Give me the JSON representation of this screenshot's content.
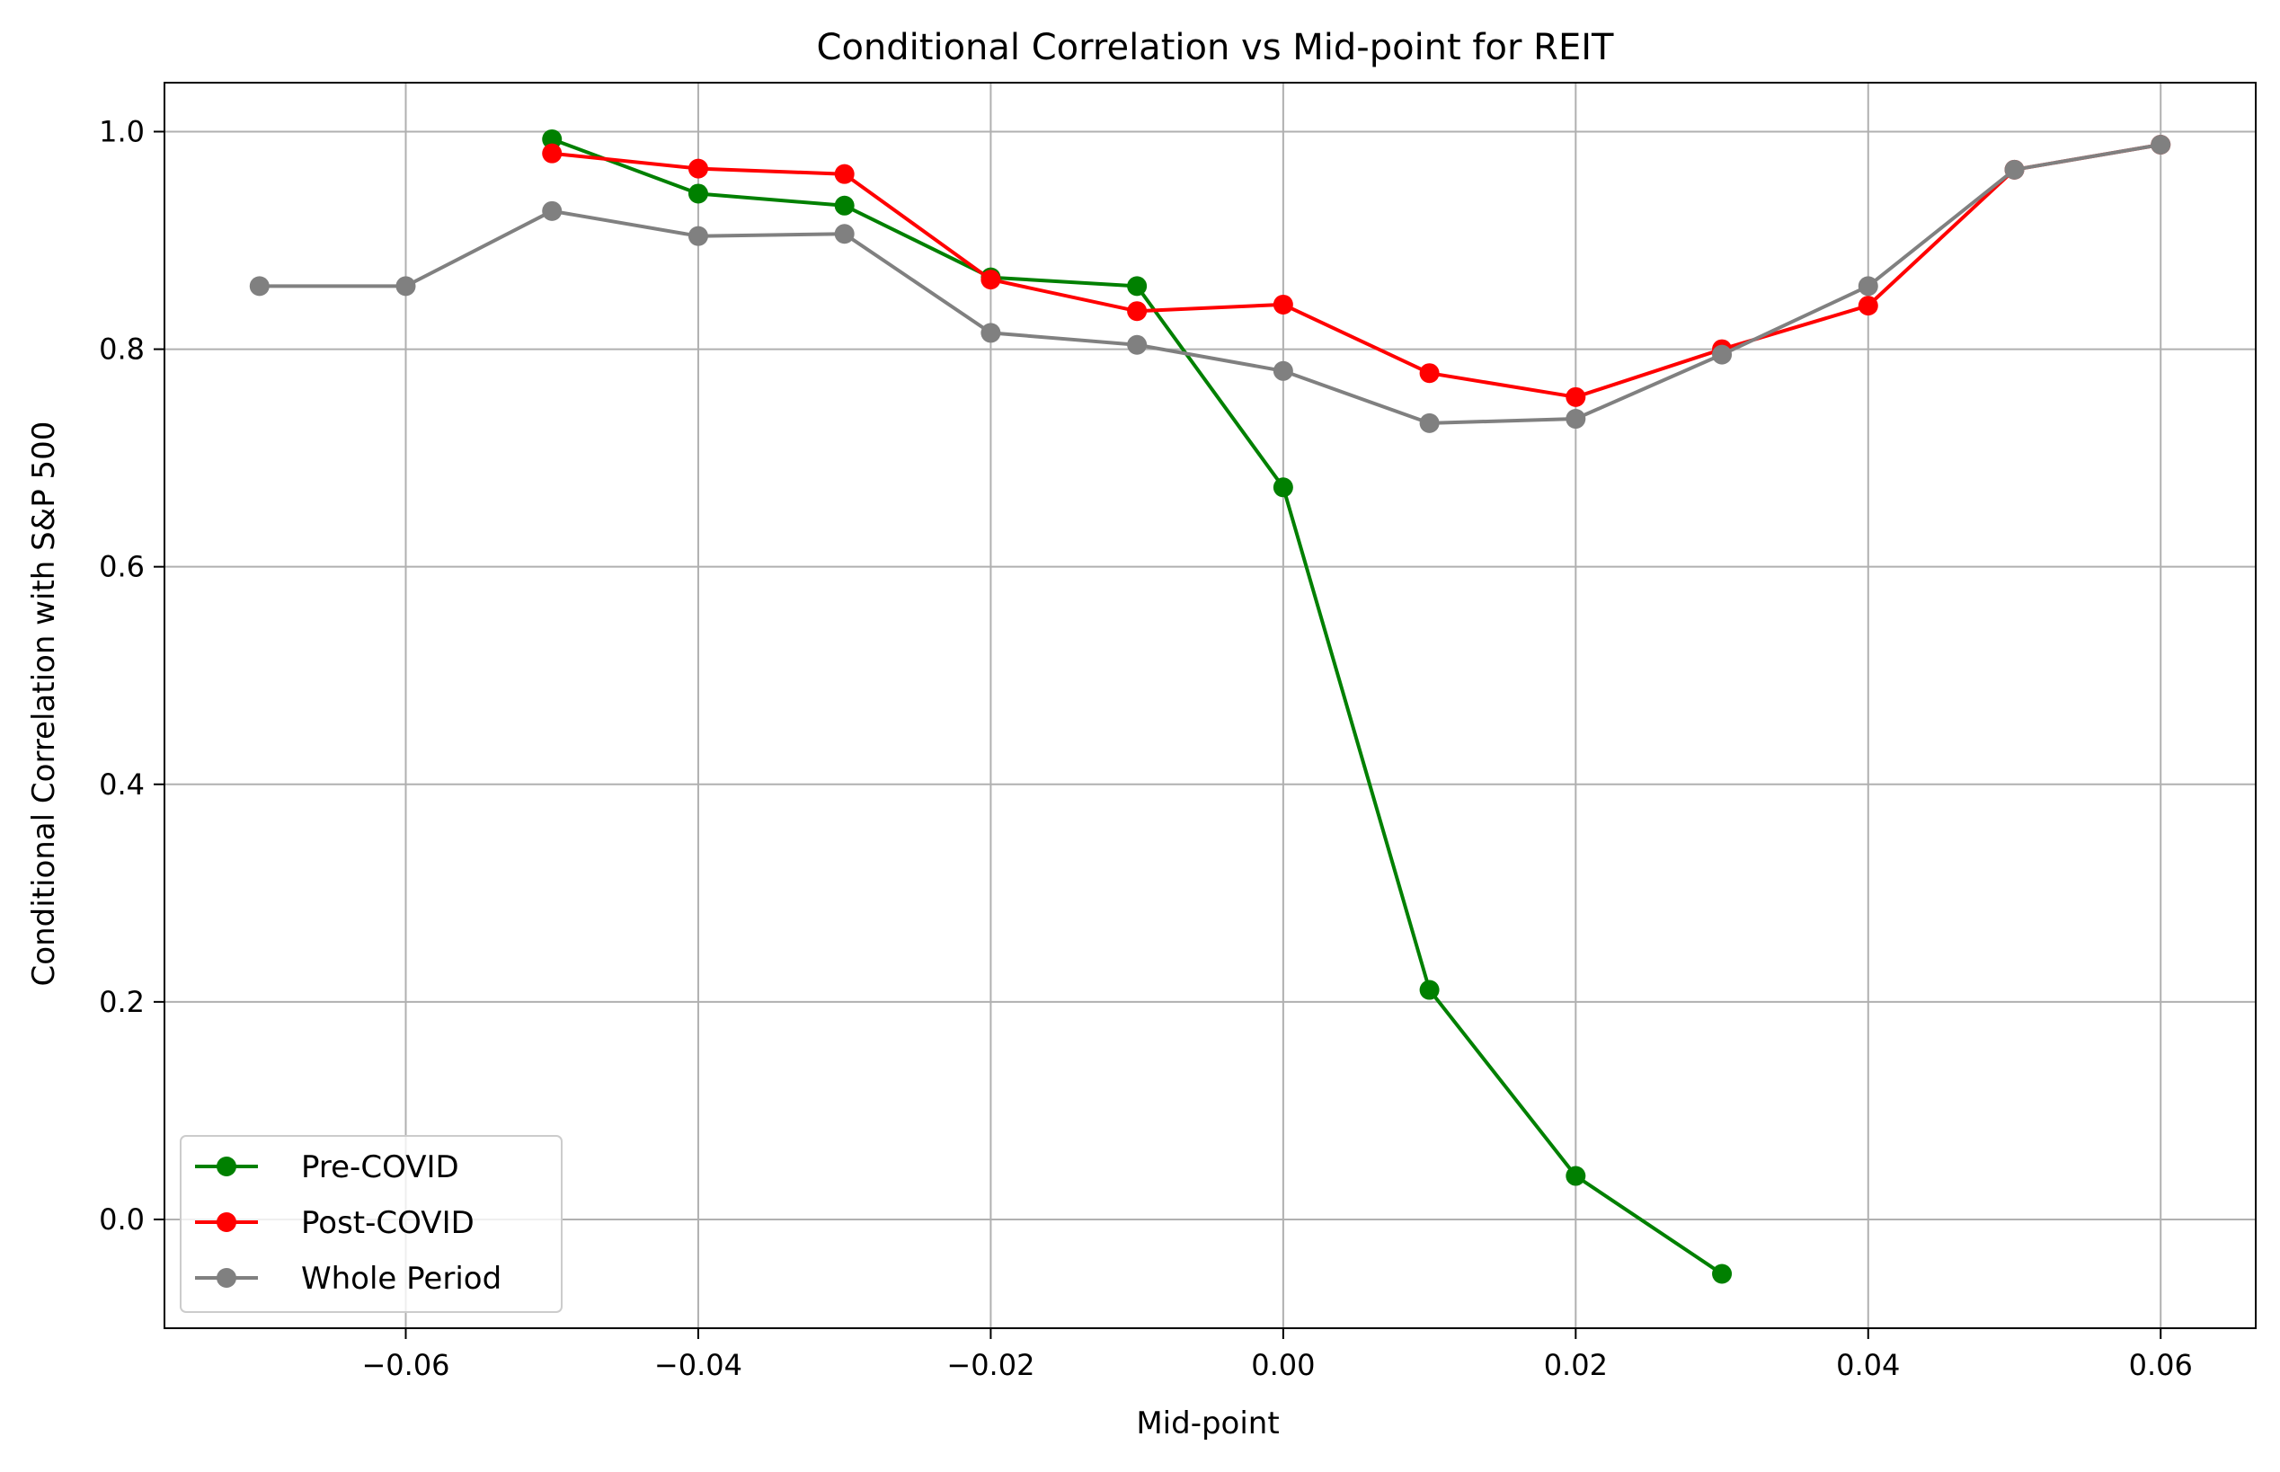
{
  "chart_data": {
    "type": "line",
    "title": "Conditional Correlation vs Mid-point for REIT",
    "xlabel": "Mid-point",
    "ylabel": "Conditional Correlation with S&P 500",
    "xlim": [
      -0.0765,
      0.0665
    ],
    "ylim": [
      -0.1,
      1.045
    ],
    "xticks": [
      -0.06,
      -0.04,
      -0.02,
      0.0,
      0.02,
      0.04,
      0.06
    ],
    "xtick_labels": [
      "−0.06",
      "−0.04",
      "−0.02",
      "0.00",
      "0.02",
      "0.04",
      "0.06"
    ],
    "yticks": [
      0.0,
      0.2,
      0.4,
      0.6,
      0.8,
      1.0
    ],
    "ytick_labels": [
      "0.0",
      "0.2",
      "0.4",
      "0.6",
      "0.8",
      "1.0"
    ],
    "grid": true,
    "legend_position": "lower-left",
    "marker": "circle",
    "series": [
      {
        "name": "Pre-COVID",
        "color": "#008000",
        "x": [
          -0.05,
          -0.04,
          -0.03,
          -0.02,
          -0.01,
          0.0,
          0.01,
          0.02,
          0.03
        ],
        "y": [
          0.993,
          0.943,
          0.932,
          0.866,
          0.858,
          0.673,
          0.211,
          0.04,
          -0.05
        ]
      },
      {
        "name": "Post-COVID",
        "color": "#ff0000",
        "x": [
          -0.05,
          -0.04,
          -0.03,
          -0.02,
          -0.01,
          0.0,
          0.01,
          0.02,
          0.03,
          0.04,
          0.05,
          0.06
        ],
        "y": [
          0.98,
          0.966,
          0.961,
          0.864,
          0.835,
          0.841,
          0.778,
          0.756,
          0.8,
          0.84,
          0.965,
          0.988
        ]
      },
      {
        "name": "Whole Period",
        "color": "#808080",
        "x": [
          -0.07,
          -0.06,
          -0.05,
          -0.04,
          -0.03,
          -0.02,
          -0.01,
          0.0,
          0.01,
          0.02,
          0.03,
          0.04,
          0.05,
          0.06
        ],
        "y": [
          0.858,
          0.858,
          0.927,
          0.904,
          0.906,
          0.815,
          0.804,
          0.78,
          0.732,
          0.736,
          0.795,
          0.858,
          0.965,
          0.988
        ]
      }
    ]
  }
}
